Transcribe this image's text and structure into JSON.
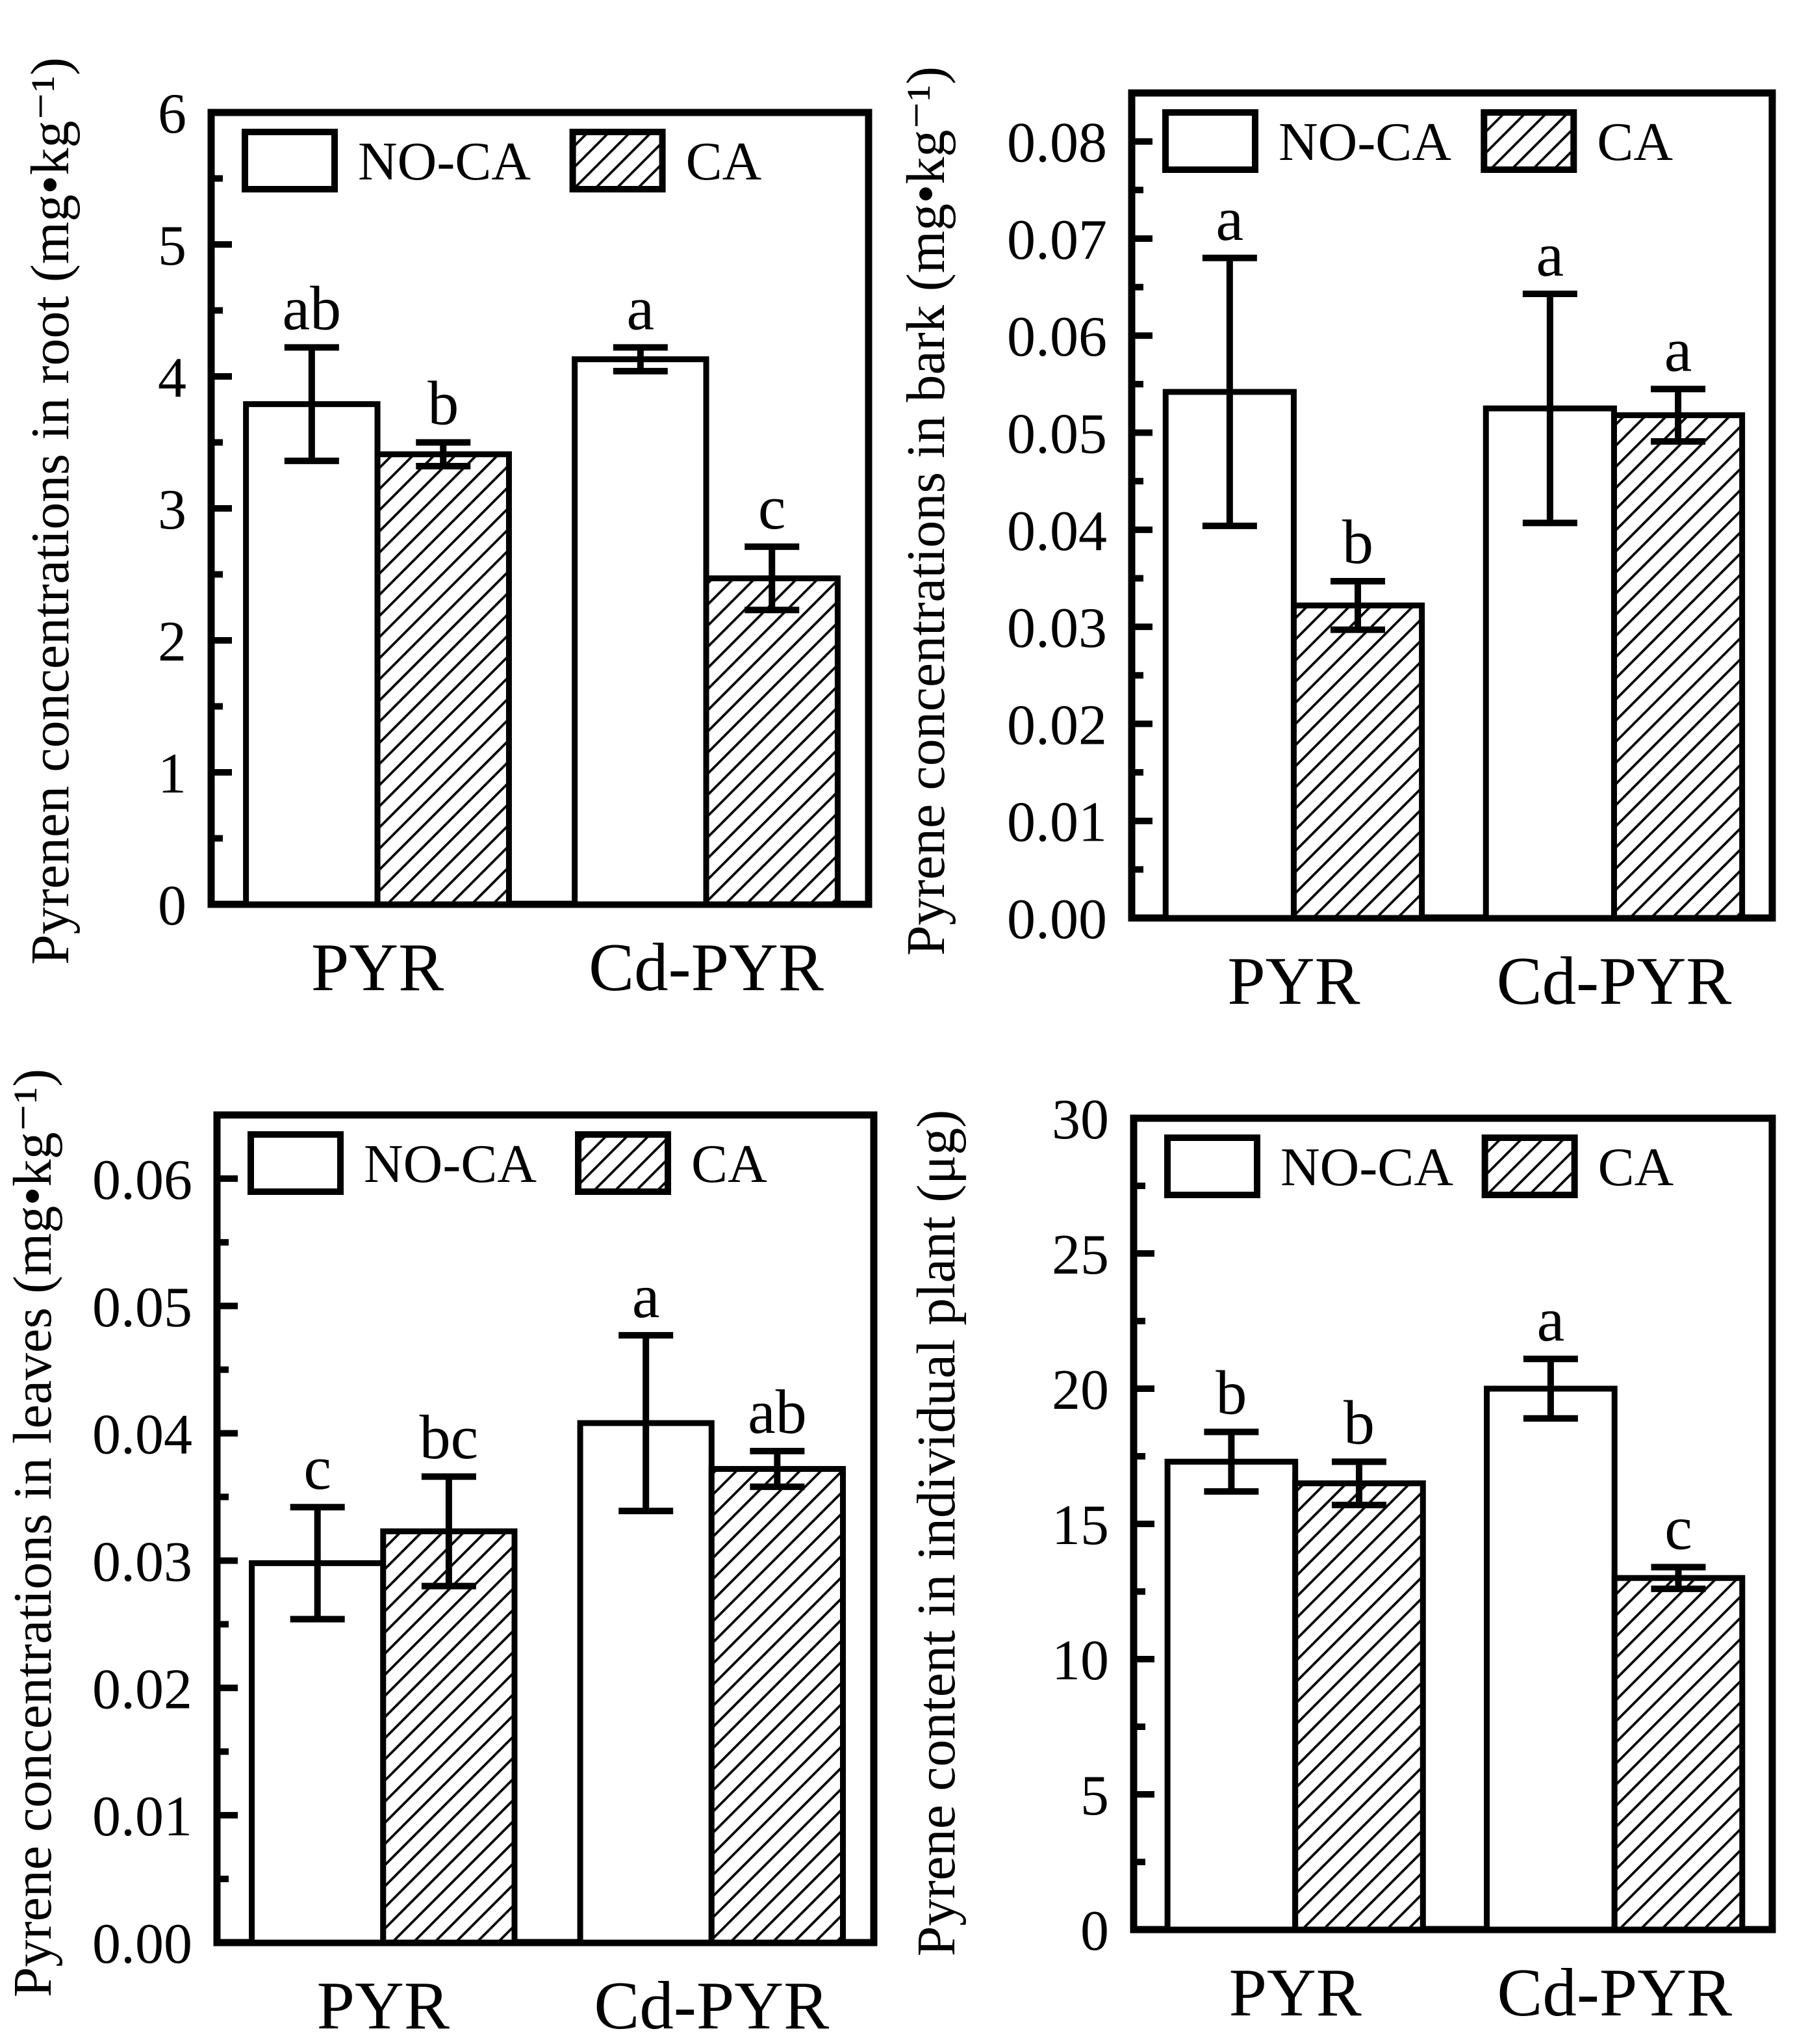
{
  "colors": {
    "ink": "#000000",
    "paper": "#ffffff"
  },
  "chart_data": [
    {
      "type": "bar",
      "panel": "root",
      "ylabel": "Pyrenen concentrations in root (mg•kg⁻¹)",
      "categories": [
        "PYR",
        "Cd-PYR"
      ],
      "legend": [
        "NO-CA",
        "CA"
      ],
      "ylim": [
        0,
        6
      ],
      "axis_top": 6,
      "yticks": [
        0,
        1,
        2,
        3,
        4,
        5,
        6
      ],
      "ytick_labels": [
        "0",
        "1",
        "2",
        "3",
        "4",
        "5",
        "6"
      ],
      "minor_step": 0.5,
      "series": [
        {
          "name": "NO-CA",
          "pattern": "plain",
          "values": [
            3.79,
            4.13
          ],
          "errors": [
            0.43,
            0.09
          ],
          "letters": [
            "ab",
            "a"
          ]
        },
        {
          "name": "CA",
          "pattern": "hatch",
          "values": [
            3.41,
            2.47
          ],
          "errors": [
            0.09,
            0.24
          ],
          "letters": [
            "b",
            "c"
          ]
        }
      ]
    },
    {
      "type": "bar",
      "panel": "bark",
      "ylabel": "Pyrene concentrations in bark (mg•kg⁻¹)",
      "categories": [
        "PYR",
        "Cd-PYR"
      ],
      "legend": [
        "NO-CA",
        "CA"
      ],
      "ylim": [
        0,
        0.085
      ],
      "axis_top": 0.085,
      "yticks": [
        0,
        0.01,
        0.02,
        0.03,
        0.04,
        0.05,
        0.06,
        0.07,
        0.08
      ],
      "ytick_labels": [
        "0.00",
        "0.01",
        "0.02",
        "0.03",
        "0.04",
        "0.05",
        "0.06",
        "0.07",
        "0.08"
      ],
      "minor_step": 0.005,
      "series": [
        {
          "name": "NO-CA",
          "pattern": "plain",
          "values": [
            0.0542,
            0.0525
          ],
          "errors": [
            0.0138,
            0.0118
          ],
          "letters": [
            "a",
            "a"
          ]
        },
        {
          "name": "CA",
          "pattern": "hatch",
          "values": [
            0.0322,
            0.0518
          ],
          "errors": [
            0.0025,
            0.0027
          ],
          "letters": [
            "b",
            "a"
          ]
        }
      ]
    },
    {
      "type": "bar",
      "panel": "leaves",
      "ylabel": "Pyrene concentrations in leaves (mg•kg⁻¹)",
      "categories": [
        "PYR",
        "Cd-PYR"
      ],
      "legend": [
        "NO-CA",
        "CA"
      ],
      "ylim": [
        0,
        0.065
      ],
      "axis_top": 0.065,
      "yticks": [
        0,
        0.01,
        0.02,
        0.03,
        0.04,
        0.05,
        0.06
      ],
      "ytick_labels": [
        "0.00",
        "0.01",
        "0.02",
        "0.03",
        "0.04",
        "0.05",
        "0.06"
      ],
      "minor_step": 0.005,
      "series": [
        {
          "name": "NO-CA",
          "pattern": "plain",
          "values": [
            0.0298,
            0.0408
          ],
          "errors": [
            0.0044,
            0.0069
          ],
          "letters": [
            "c",
            "a"
          ]
        },
        {
          "name": "CA",
          "pattern": "hatch",
          "values": [
            0.0323,
            0.0372
          ],
          "errors": [
            0.0043,
            0.0014
          ],
          "letters": [
            "bc",
            "ab"
          ]
        }
      ]
    },
    {
      "type": "bar",
      "panel": "individual-plant",
      "ylabel": "Pyrene content in individual plant (μg)",
      "categories": [
        "PYR",
        "Cd-PYR"
      ],
      "legend": [
        "NO-CA",
        "CA"
      ],
      "ylim": [
        0,
        30
      ],
      "axis_top": 30,
      "yticks": [
        0,
        5,
        10,
        15,
        20,
        25,
        30
      ],
      "ytick_labels": [
        "0",
        "5",
        "10",
        "15",
        "20",
        "25",
        "30"
      ],
      "minor_step": 2.5,
      "series": [
        {
          "name": "NO-CA",
          "pattern": "plain",
          "values": [
            17.3,
            20.0
          ],
          "errors": [
            1.1,
            1.1
          ],
          "letters": [
            "b",
            "a"
          ]
        },
        {
          "name": "CA",
          "pattern": "hatch",
          "values": [
            16.5,
            13.0
          ],
          "errors": [
            0.8,
            0.4
          ],
          "letters": [
            "b",
            "c"
          ]
        }
      ]
    }
  ]
}
